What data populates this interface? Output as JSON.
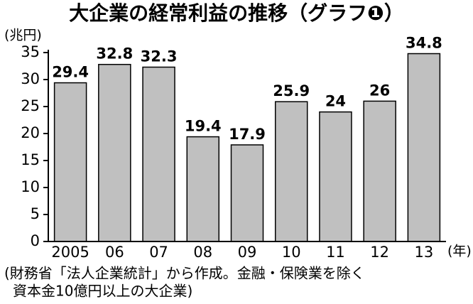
{
  "chart_data": {
    "type": "bar",
    "title": "大企業の経常利益の推移（グラフ❶）",
    "y_label": "(兆円)",
    "x_label": "(年)",
    "categories": [
      "2005",
      "06",
      "07",
      "08",
      "09",
      "10",
      "11",
      "12",
      "13"
    ],
    "values": [
      29.4,
      32.8,
      32.3,
      19.4,
      17.9,
      25.9,
      24,
      26,
      34.8
    ],
    "color": "#c0c0c0",
    "ylim": [
      0,
      35
    ],
    "yticks": [
      0,
      5,
      10,
      15,
      20,
      25,
      30,
      35
    ],
    "notes": [
      "(財務省「法人企業統計」から作成。金融・保険業を除く",
      "資本金10億円以上の大企業)"
    ]
  }
}
